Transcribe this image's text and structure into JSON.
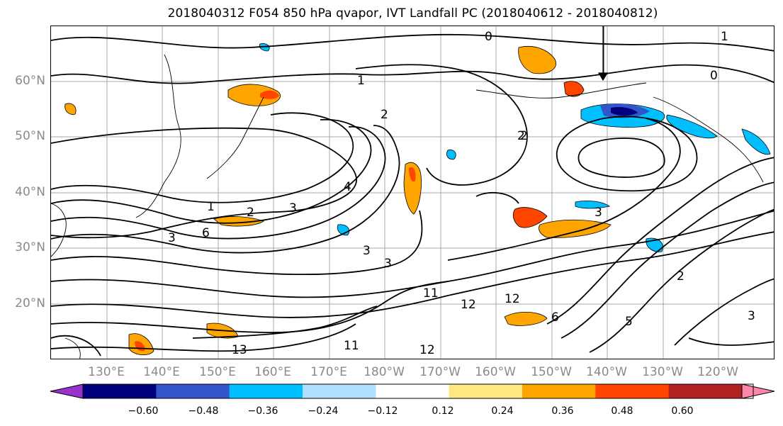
{
  "title": "2018040312 F054 850 hPa qvapor, IVT Landfall PC (2018040612 - 2018040812)",
  "lat_labels": [
    "60°N",
    "50°N",
    "40°N",
    "30°N",
    "20°N"
  ],
  "lon_labels": [
    "130°E",
    "140°E",
    "150°E",
    "160°E",
    "170°E",
    "180°W",
    "170°W",
    "160°W",
    "150°W",
    "140°W",
    "130°W",
    "120°W"
  ],
  "contour_labels": [
    "0",
    "1",
    "2",
    "2",
    "1",
    "2",
    "3",
    "4",
    "3",
    "6",
    "3",
    "3",
    "3",
    "2",
    "11",
    "12",
    "12",
    "13",
    "11",
    "12",
    "6",
    "5",
    "2",
    "3",
    "1",
    "0"
  ],
  "colorbar": {
    "ticks": [
      "−0.60",
      "−0.48",
      "−0.36",
      "−0.24",
      "−0.12",
      "0.12",
      "0.24",
      "0.36",
      "0.48",
      "0.60"
    ],
    "colors": [
      "#9932cc",
      "#00007f",
      "#3355cc",
      "#00bfff",
      "#b0e0ff",
      "#ffffff",
      "#ffe87f",
      "#ffa500",
      "#ff4500",
      "#b22222",
      "#ff88aa"
    ]
  }
}
